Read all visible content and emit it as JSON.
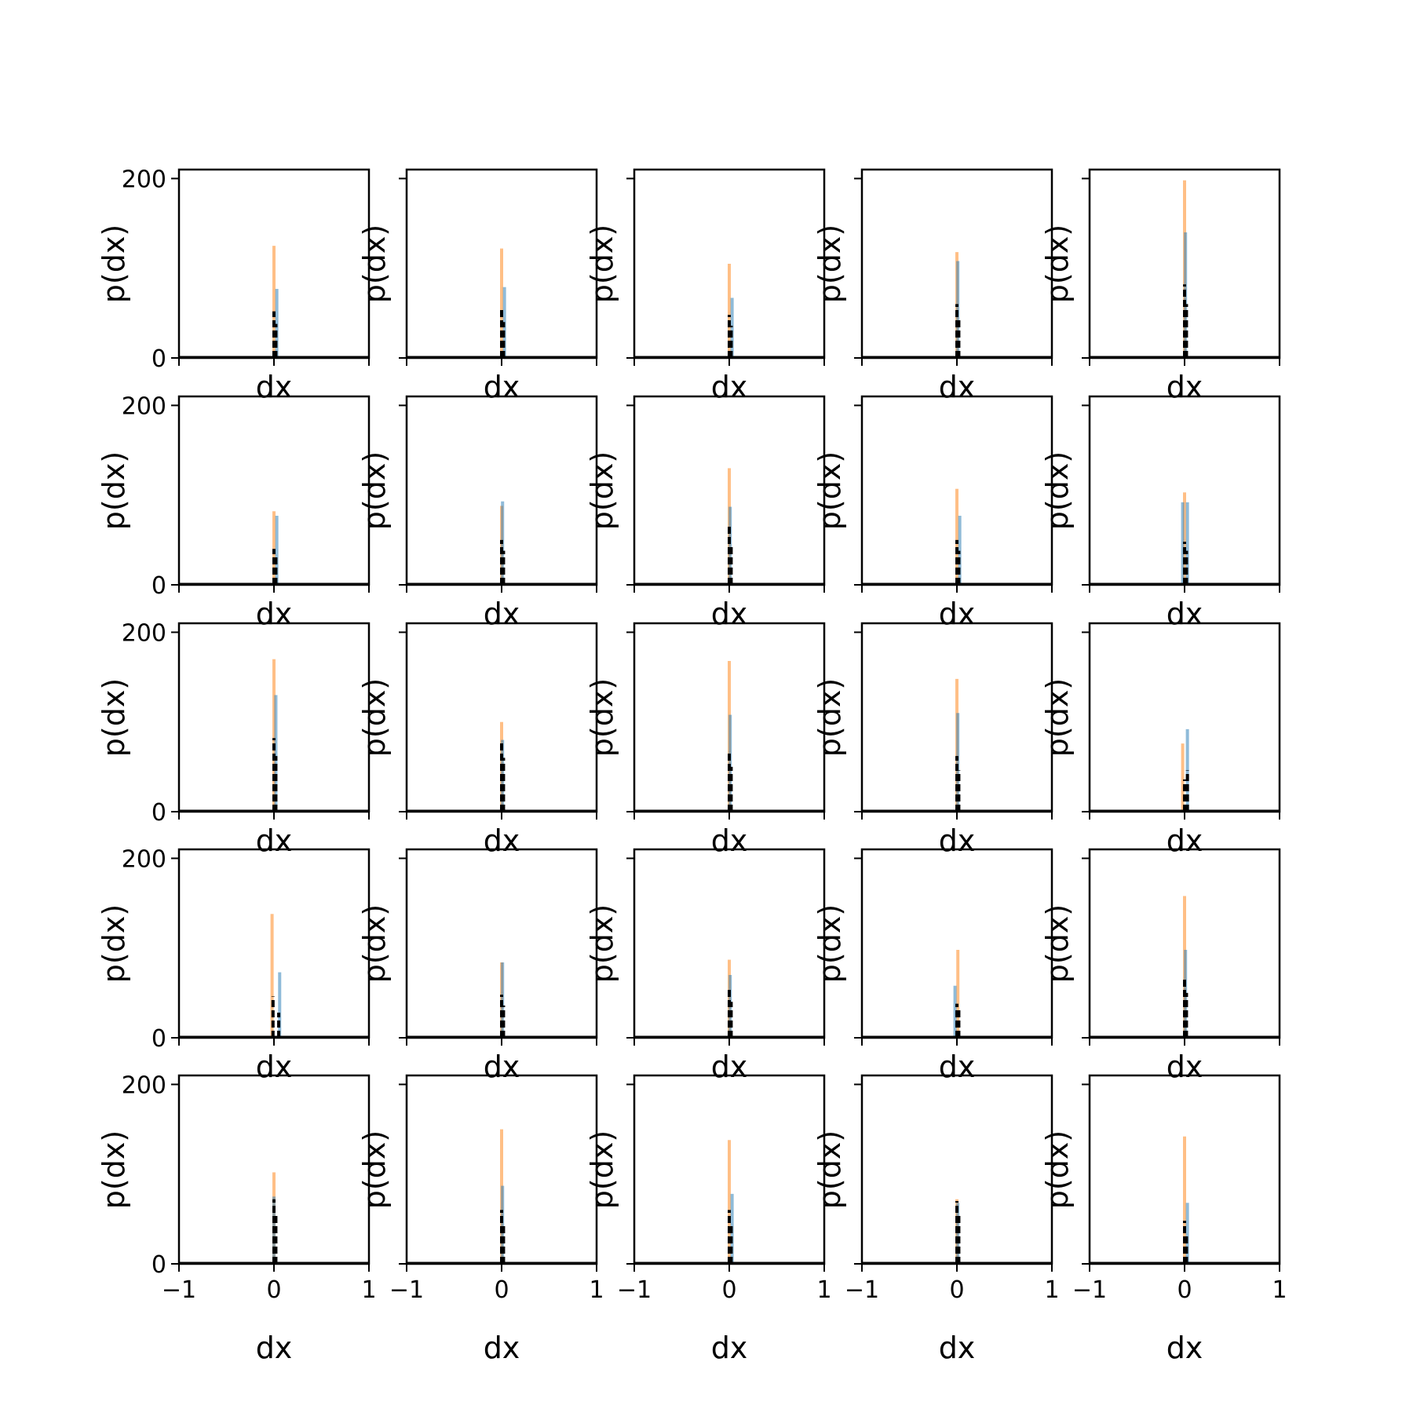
{
  "chart_data": {
    "type": "histogram-grid",
    "rows": 5,
    "cols": 5,
    "xlabel": "dx",
    "ylabel": "p(dx)",
    "xlim": [
      -1,
      1
    ],
    "ylim": [
      0,
      210
    ],
    "xticks": [
      -1,
      0,
      1
    ],
    "xtick_labels": [
      "−1",
      "0",
      "1"
    ],
    "yticks": [
      0,
      200
    ],
    "ytick_labels": [
      "0",
      "200"
    ],
    "grid": false,
    "legend": "none",
    "colors": {
      "series_a": "#ff7f0e",
      "series_b": "#1f77b4",
      "density_line": "#000000"
    },
    "panels": [
      {
        "orange": [
          [
            0.0,
            125
          ]
        ],
        "blue": [
          [
            0.03,
            77
          ]
        ],
        "black": [
          [
            0.0,
            52
          ],
          [
            0.02,
            38
          ]
        ]
      },
      {
        "orange": [
          [
            0.0,
            122
          ]
        ],
        "blue": [
          [
            0.03,
            79
          ]
        ],
        "black": [
          [
            0.0,
            54
          ],
          [
            0.02,
            40
          ]
        ]
      },
      {
        "orange": [
          [
            0.0,
            105
          ]
        ],
        "blue": [
          [
            0.03,
            67
          ]
        ],
        "black": [
          [
            0.0,
            48
          ],
          [
            0.02,
            36
          ]
        ]
      },
      {
        "orange": [
          [
            0.0,
            118
          ]
        ],
        "blue": [
          [
            0.01,
            108
          ]
        ],
        "black": [
          [
            0.0,
            60
          ],
          [
            0.02,
            42
          ]
        ]
      },
      {
        "orange": [
          [
            0.0,
            198
          ]
        ],
        "blue": [
          [
            0.01,
            140
          ]
        ],
        "black": [
          [
            0.0,
            82
          ],
          [
            0.02,
            60
          ]
        ]
      },
      {
        "orange": [
          [
            0.0,
            82
          ]
        ],
        "blue": [
          [
            0.03,
            77
          ]
        ],
        "black": [
          [
            0.0,
            40
          ],
          [
            0.02,
            34
          ]
        ]
      },
      {
        "orange": [
          [
            0.0,
            88
          ]
        ],
        "blue": [
          [
            0.01,
            93
          ]
        ],
        "black": [
          [
            0.0,
            50
          ],
          [
            0.02,
            38
          ]
        ]
      },
      {
        "orange": [
          [
            0.0,
            130
          ]
        ],
        "blue": [
          [
            0.01,
            87
          ]
        ],
        "black": [
          [
            0.0,
            65
          ],
          [
            0.02,
            45
          ]
        ]
      },
      {
        "orange": [
          [
            0.0,
            107
          ]
        ],
        "blue": [
          [
            0.03,
            77
          ]
        ],
        "black": [
          [
            0.0,
            50
          ],
          [
            0.02,
            38
          ]
        ]
      },
      {
        "orange": [
          [
            0.0,
            103
          ]
        ],
        "blue": [
          [
            -0.02,
            92
          ],
          [
            0.03,
            92
          ]
        ],
        "black": [
          [
            0.0,
            48
          ],
          [
            0.02,
            38
          ]
        ]
      },
      {
        "orange": [
          [
            0.0,
            170
          ]
        ],
        "blue": [
          [
            0.02,
            130
          ]
        ],
        "black": [
          [
            0.0,
            82
          ],
          [
            0.02,
            62
          ]
        ]
      },
      {
        "orange": [
          [
            0.0,
            100
          ]
        ],
        "blue": [
          [
            0.01,
            80
          ]
        ],
        "black": [
          [
            0.0,
            78
          ],
          [
            0.02,
            60
          ]
        ]
      },
      {
        "orange": [
          [
            0.0,
            168
          ]
        ],
        "blue": [
          [
            0.01,
            108
          ]
        ],
        "black": [
          [
            0.0,
            68
          ],
          [
            0.02,
            50
          ]
        ]
      },
      {
        "orange": [
          [
            0.0,
            148
          ]
        ],
        "blue": [
          [
            0.01,
            110
          ]
        ],
        "black": [
          [
            0.0,
            62
          ],
          [
            0.02,
            46
          ]
        ]
      },
      {
        "orange": [
          [
            -0.02,
            76
          ]
        ],
        "blue": [
          [
            0.03,
            92
          ]
        ],
        "black": [
          [
            0.0,
            36
          ],
          [
            0.03,
            46
          ]
        ]
      },
      {
        "orange": [
          [
            -0.02,
            138
          ]
        ],
        "blue": [
          [
            0.06,
            73
          ]
        ],
        "black": [
          [
            -0.01,
            46
          ],
          [
            0.05,
            28
          ]
        ]
      },
      {
        "orange": [
          [
            0.0,
            84
          ]
        ],
        "blue": [
          [
            0.01,
            84
          ]
        ],
        "black": [
          [
            0.0,
            48
          ],
          [
            0.02,
            36
          ]
        ]
      },
      {
        "orange": [
          [
            0.0,
            87
          ]
        ],
        "blue": [
          [
            0.01,
            70
          ]
        ],
        "black": [
          [
            0.0,
            56
          ],
          [
            0.02,
            40
          ]
        ]
      },
      {
        "orange": [
          [
            0.01,
            98
          ]
        ],
        "blue": [
          [
            -0.02,
            58
          ]
        ],
        "black": [
          [
            0.0,
            38
          ],
          [
            0.02,
            32
          ]
        ]
      },
      {
        "orange": [
          [
            0.0,
            158
          ]
        ],
        "blue": [
          [
            0.01,
            98
          ]
        ],
        "black": [
          [
            0.0,
            66
          ],
          [
            0.02,
            50
          ]
        ]
      },
      {
        "orange": [
          [
            0.0,
            102
          ]
        ],
        "blue": [
          [
            0.0,
            75
          ]
        ],
        "black": [
          [
            0.0,
            72
          ],
          [
            0.02,
            56
          ]
        ]
      },
      {
        "orange": [
          [
            0.0,
            150
          ]
        ],
        "blue": [
          [
            0.01,
            87
          ]
        ],
        "black": [
          [
            0.0,
            60
          ],
          [
            0.02,
            44
          ]
        ]
      },
      {
        "orange": [
          [
            0.0,
            138
          ]
        ],
        "blue": [
          [
            0.03,
            78
          ]
        ],
        "black": [
          [
            0.0,
            60
          ],
          [
            0.02,
            44
          ]
        ]
      },
      {
        "orange": [
          [
            0.0,
            72
          ]
        ],
        "blue": [
          [
            0.01,
            68
          ]
        ],
        "black": [
          [
            0.0,
            70
          ],
          [
            0.02,
            54
          ]
        ]
      },
      {
        "orange": [
          [
            0.0,
            142
          ]
        ],
        "blue": [
          [
            0.03,
            68
          ]
        ],
        "black": [
          [
            0.0,
            48
          ],
          [
            0.02,
            34
          ]
        ]
      }
    ]
  }
}
